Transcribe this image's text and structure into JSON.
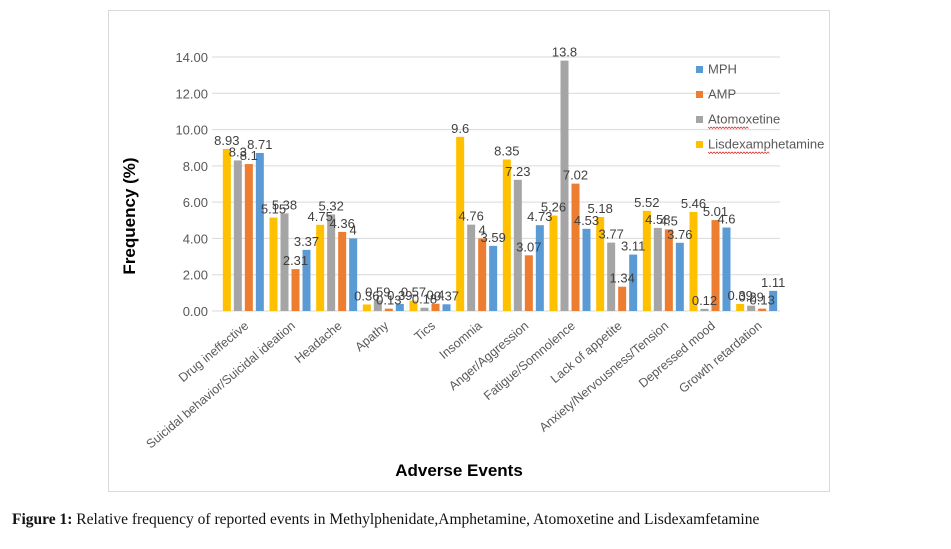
{
  "chart_data": {
    "type": "bar",
    "title": "",
    "xlabel": "Adverse Events",
    "ylabel": "Frequency (%)",
    "ylim": [
      0,
      14
    ],
    "yticks": [
      "0.00",
      "2.00",
      "4.00",
      "6.00",
      "8.00",
      "10.00",
      "12.00",
      "14.00"
    ],
    "grid": true,
    "legend_position": "top-right",
    "categories": [
      "Drug ineffective",
      "Suicidal behavior/Suicidal ideation",
      "Headache",
      "Apathy",
      "Tics",
      "Insomnia",
      "Anger/Aggression",
      "Fatigue/Somnolence",
      "Lack of appetite",
      "Anxiety/Nervousness/Tension",
      "Depressed mood",
      "Growth retardation"
    ],
    "series": [
      {
        "name": "Lisdexamphetamine",
        "color": "#FFC000",
        "values": [
          8.93,
          5.15,
          4.75,
          0.36,
          0.57,
          9.6,
          8.35,
          5.26,
          5.18,
          5.52,
          5.46,
          0.39
        ]
      },
      {
        "name": "Atomoxetine",
        "color": "#A5A5A5",
        "values": [
          8.3,
          5.38,
          5.32,
          0.59,
          0.18,
          4.76,
          7.23,
          13.8,
          3.77,
          4.58,
          0.12,
          0.29
        ]
      },
      {
        "name": "AMP",
        "color": "#ED7D31",
        "values": [
          8.1,
          2.31,
          4.36,
          0.13,
          0.4,
          4,
          3.07,
          7.02,
          1.34,
          4.5,
          5.01,
          0.13
        ]
      },
      {
        "name": "MPH",
        "color": "#5B9BD5",
        "values": [
          8.71,
          3.37,
          4,
          0.39,
          0.37,
          3.59,
          4.73,
          4.53,
          3.11,
          3.76,
          4.6,
          1.11
        ]
      }
    ],
    "legend_order": [
      "MPH",
      "AMP",
      "Atomoxetine",
      "Lisdexamphetamine"
    ]
  },
  "caption": {
    "label": "Figure 1:",
    "text": " Relative frequency of reported events in Methylphenidate,Amphetamine, Atomoxetine and Lisdexamfetamine"
  }
}
